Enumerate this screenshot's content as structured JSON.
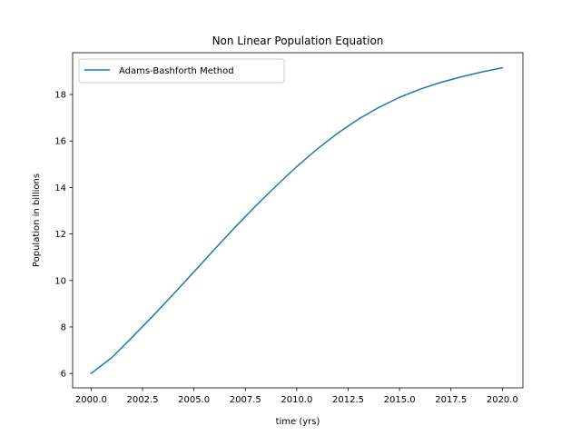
{
  "chart_data": {
    "type": "line",
    "title": "Non Linear Population Equation",
    "xlabel": "time (yrs)",
    "ylabel": "Population in billions",
    "xlim": [
      1999.1,
      2021.0
    ],
    "ylim": [
      5.38,
      19.8
    ],
    "xticks": [
      2000.0,
      2002.5,
      2005.0,
      2007.5,
      2010.0,
      2012.5,
      2015.0,
      2017.5,
      2020.0
    ],
    "xtick_labels": [
      "2000.0",
      "2002.5",
      "2005.0",
      "2007.5",
      "2010.0",
      "2012.5",
      "2015.0",
      "2017.5",
      "2020.0"
    ],
    "yticks": [
      6,
      8,
      10,
      12,
      14,
      16,
      18
    ],
    "ytick_labels": [
      "6",
      "8",
      "10",
      "12",
      "14",
      "16",
      "18"
    ],
    "grid": false,
    "legend_position": "top-left",
    "series": [
      {
        "name": "Adams-Bashforth Method",
        "color": "#1f77b4",
        "x": [
          2000,
          2001,
          2002,
          2003,
          2004,
          2005,
          2006,
          2007,
          2008,
          2009,
          2010,
          2011,
          2012,
          2013,
          2014,
          2015,
          2016,
          2017,
          2018,
          2019,
          2020
        ],
        "y": [
          6.0,
          6.68,
          7.56,
          8.47,
          9.41,
          10.37,
          11.34,
          12.29,
          13.2,
          14.07,
          14.9,
          15.66,
          16.34,
          16.94,
          17.45,
          17.88,
          18.23,
          18.52,
          18.76,
          18.97,
          19.15
        ]
      }
    ]
  }
}
